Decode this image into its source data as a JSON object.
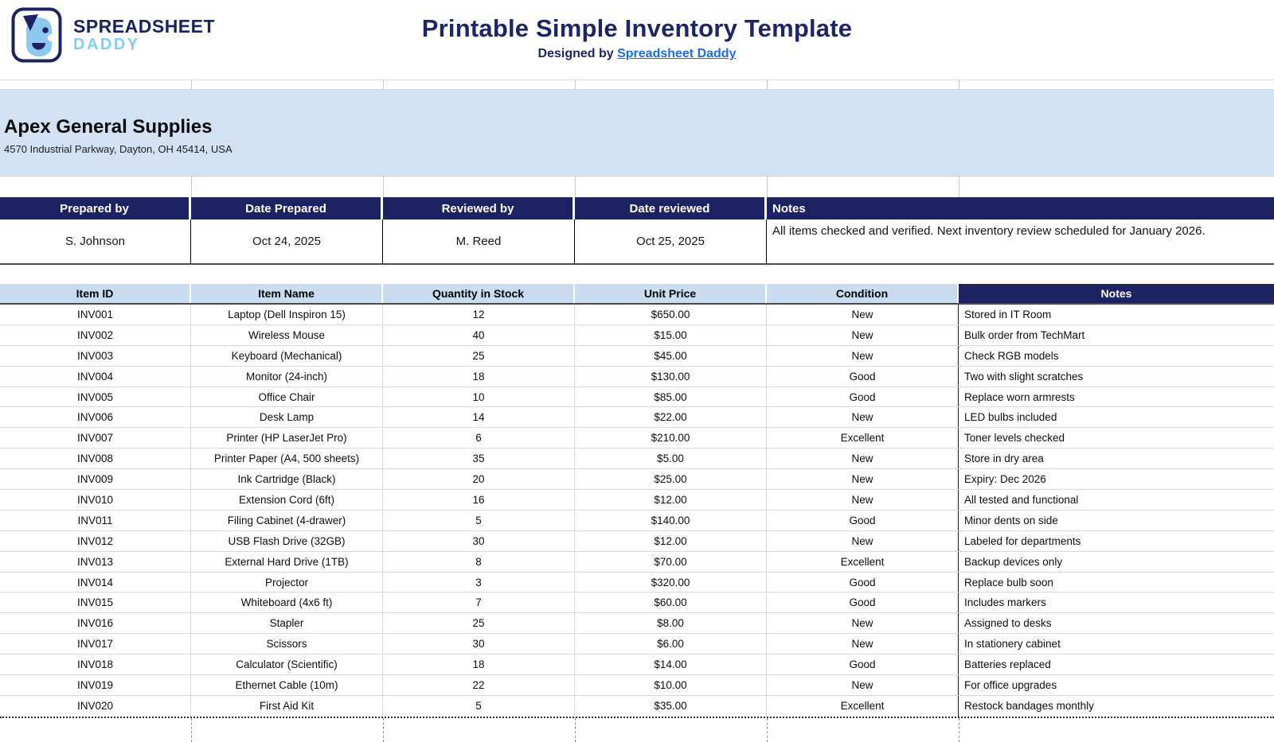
{
  "brand": {
    "line1": "SPREADSHEET",
    "line2": "DADDY"
  },
  "header": {
    "title": "Printable Simple Inventory Template",
    "subtitle_prefix": "Designed by ",
    "subtitle_link": "Spreadsheet Daddy"
  },
  "company": {
    "name": "Apex General Supplies",
    "address": "4570 Industrial Parkway, Dayton, OH 45414, USA"
  },
  "meta_table": {
    "headers": [
      "Prepared by",
      "Date Prepared",
      "Reviewed by",
      "Date reviewed",
      "Notes"
    ],
    "values": {
      "prepared_by": "S. Johnson",
      "date_prepared": "Oct 24, 2025",
      "reviewed_by": "M. Reed",
      "date_reviewed": "Oct 25, 2025",
      "notes": "All items checked and verified. Next inventory review scheduled for January 2026."
    }
  },
  "inventory": {
    "headers": [
      "Item ID",
      "Item Name",
      "Quantity in Stock",
      "Unit Price",
      "Condition",
      "Notes"
    ],
    "rows": [
      [
        "INV001",
        "Laptop (Dell Inspiron 15)",
        "12",
        "$650.00",
        "New",
        "Stored in IT Room"
      ],
      [
        "INV002",
        "Wireless Mouse",
        "40",
        "$15.00",
        "New",
        "Bulk order from TechMart"
      ],
      [
        "INV003",
        "Keyboard (Mechanical)",
        "25",
        "$45.00",
        "New",
        "Check RGB models"
      ],
      [
        "INV004",
        "Monitor (24-inch)",
        "18",
        "$130.00",
        "Good",
        "Two with slight scratches"
      ],
      [
        "INV005",
        "Office Chair",
        "10",
        "$85.00",
        "Good",
        "Replace worn armrests"
      ],
      [
        "INV006",
        "Desk Lamp",
        "14",
        "$22.00",
        "New",
        "LED bulbs included"
      ],
      [
        "INV007",
        "Printer (HP LaserJet Pro)",
        "6",
        "$210.00",
        "Excellent",
        "Toner levels checked"
      ],
      [
        "INV008",
        "Printer Paper (A4, 500 sheets)",
        "35",
        "$5.00",
        "New",
        "Store in dry area"
      ],
      [
        "INV009",
        "Ink Cartridge (Black)",
        "20",
        "$25.00",
        "New",
        "Expiry: Dec 2026"
      ],
      [
        "INV010",
        "Extension Cord (6ft)",
        "16",
        "$12.00",
        "New",
        "All tested and functional"
      ],
      [
        "INV011",
        "Filing Cabinet (4-drawer)",
        "5",
        "$140.00",
        "Good",
        "Minor dents on side"
      ],
      [
        "INV012",
        "USB Flash Drive (32GB)",
        "30",
        "$12.00",
        "New",
        "Labeled for departments"
      ],
      [
        "INV013",
        "External Hard Drive (1TB)",
        "8",
        "$70.00",
        "Excellent",
        "Backup devices only"
      ],
      [
        "INV014",
        "Projector",
        "3",
        "$320.00",
        "Good",
        "Replace bulb soon"
      ],
      [
        "INV015",
        "Whiteboard (4x6 ft)",
        "7",
        "$60.00",
        "Good",
        "Includes markers"
      ],
      [
        "INV016",
        "Stapler",
        "25",
        "$8.00",
        "New",
        "Assigned to desks"
      ],
      [
        "INV017",
        "Scissors",
        "30",
        "$6.00",
        "New",
        "In stationery cabinet"
      ],
      [
        "INV018",
        "Calculator (Scientific)",
        "18",
        "$14.00",
        "Good",
        "Batteries replaced"
      ],
      [
        "INV019",
        "Ethernet Cable (10m)",
        "22",
        "$10.00",
        "New",
        "For office upgrades"
      ],
      [
        "INV020",
        "First Aid Kit",
        "5",
        "$35.00",
        "Excellent",
        "Restock bandages monthly"
      ]
    ]
  },
  "colors": {
    "navy": "#1d2263",
    "brand_light_blue": "#7ed0f5",
    "band_blue": "#d2e1f3",
    "table_header_blue": "#c9dcf0",
    "link_blue": "#1a6deb"
  }
}
